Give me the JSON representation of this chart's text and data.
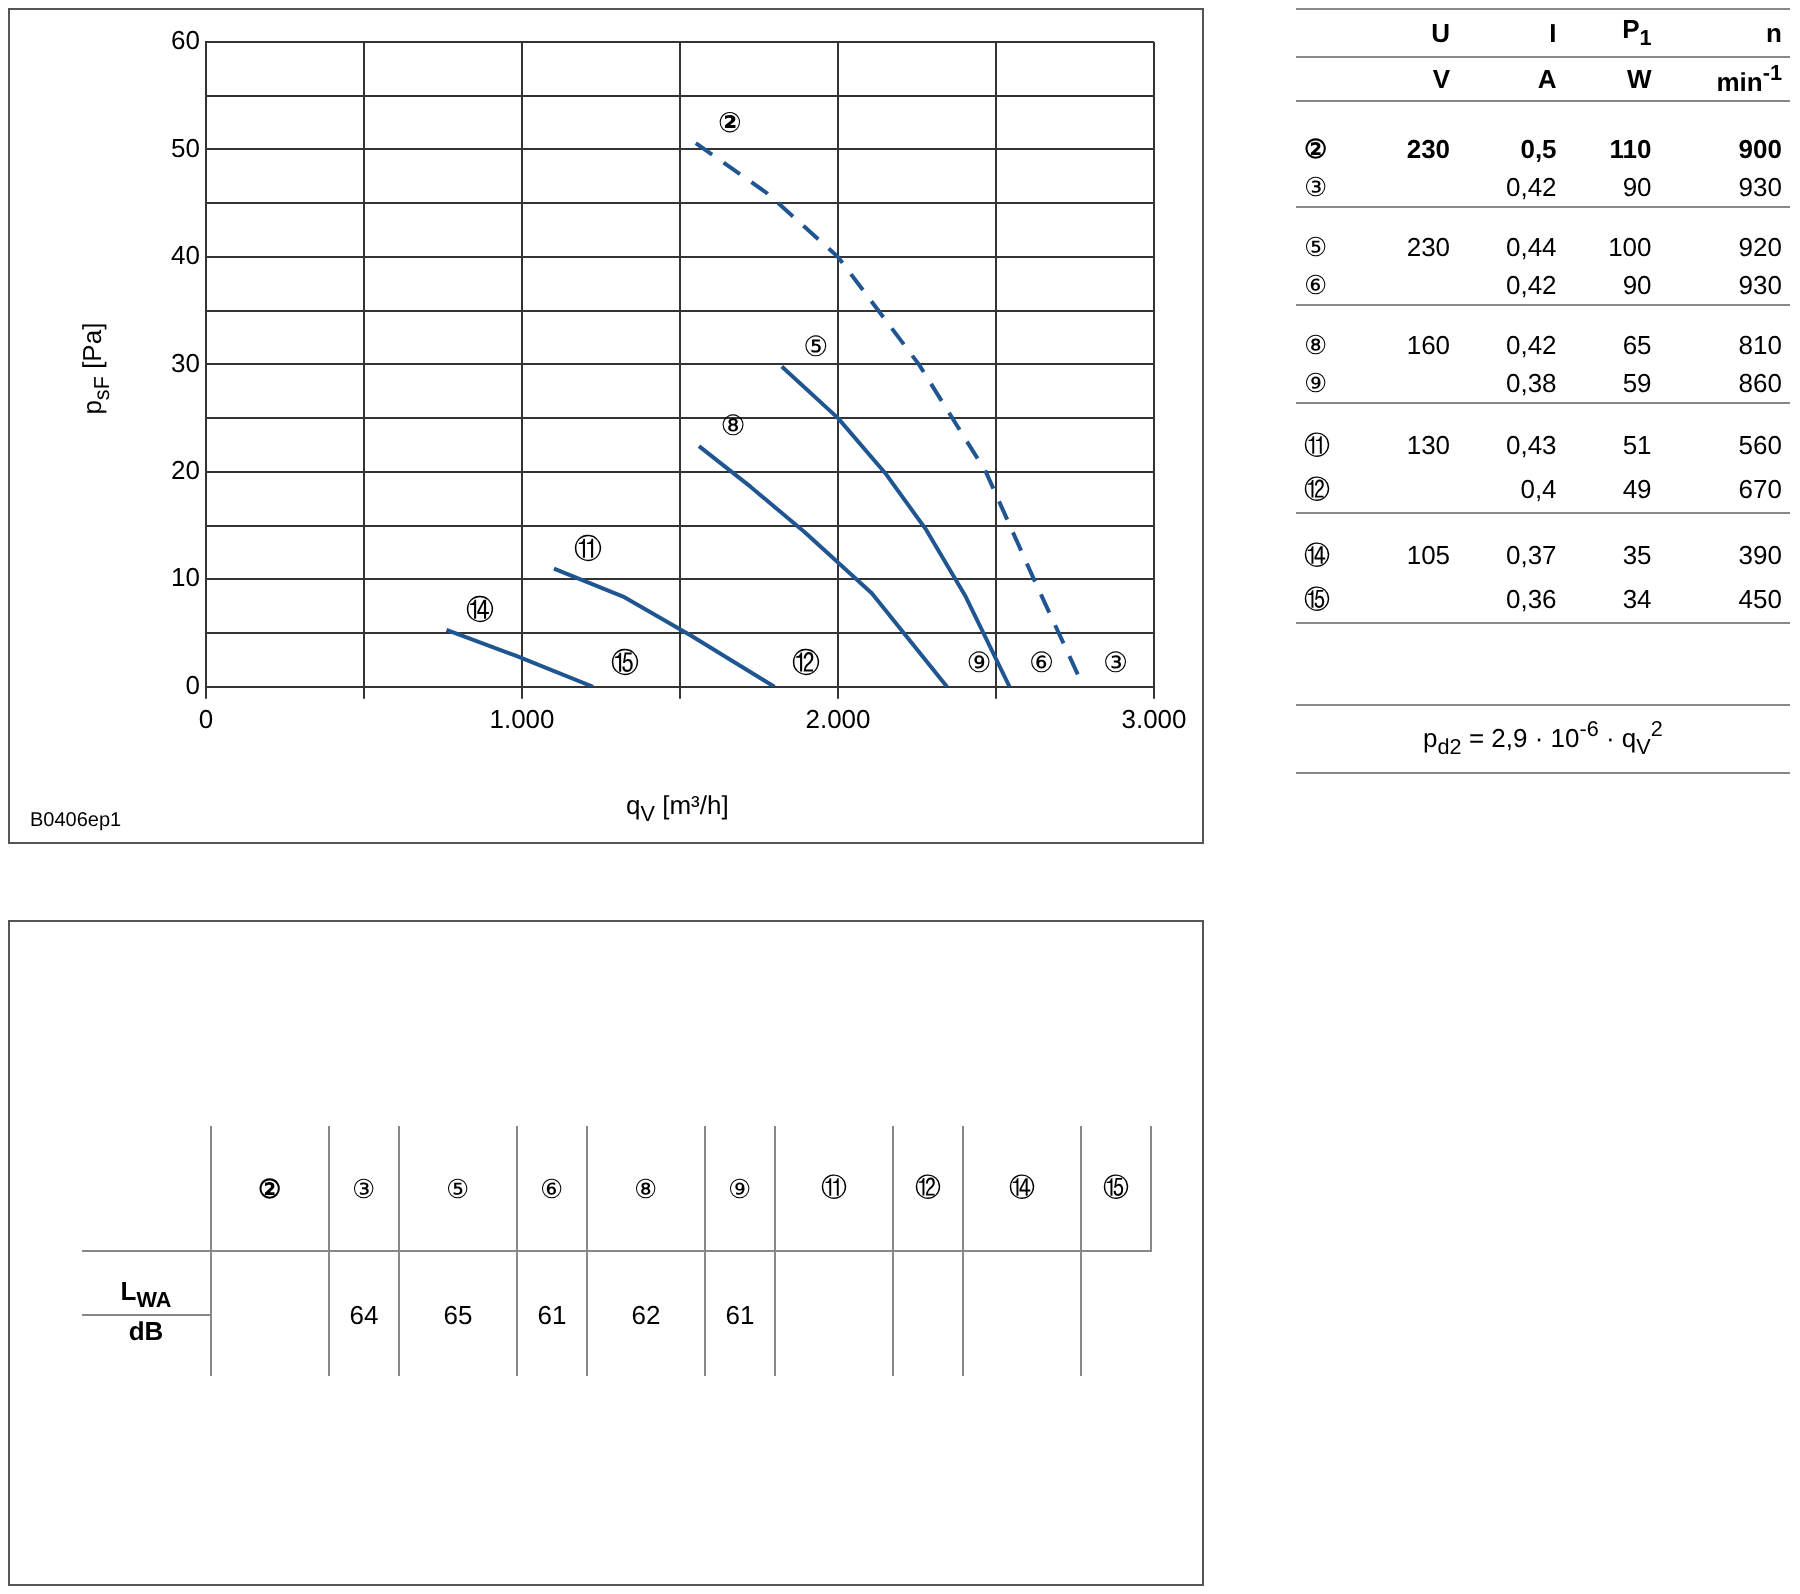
{
  "chart_data": [
    {
      "type": "line",
      "xlabel": "q$_{V}$ [m³/h]",
      "ylabel": "p$_{sF}$ [Pa]",
      "xlim": [
        0,
        3000
      ],
      "ylim": [
        0,
        60
      ],
      "grid": true,
      "xticks": [
        0,
        {
          "value": 500,
          "label": null
        },
        {
          "value": 1000,
          "label": "1.000"
        },
        {
          "value": 1500,
          "label": null
        },
        {
          "value": 2000,
          "label": "2.000"
        },
        {
          "value": 2500,
          "label": null
        },
        {
          "value": 3000,
          "label": "3.000"
        }
      ],
      "yticks": [
        0,
        {
          "value": 5,
          "label": null
        },
        10,
        {
          "value": 15,
          "label": null
        },
        20,
        {
          "value": 25,
          "label": null
        },
        30,
        {
          "value": 35,
          "label": null
        },
        40,
        {
          "value": 45,
          "label": null
        },
        50,
        {
          "value": 55,
          "label": null
        },
        60
      ],
      "series": [
        {
          "name": "②",
          "color": "#1f5590",
          "line_style": "dashed",
          "x": [
            1550,
            1777,
            2000,
            2256,
            2468,
            2617,
            2777
          ],
          "values": [
            50.6,
            45.9,
            40,
            30,
            20,
            10.2,
            0
          ]
        },
        {
          "name": "⑤",
          "color": "#1f5590",
          "x": [
            1822,
            2000,
            2149,
            2277,
            2404,
            2543
          ],
          "values": [
            29.8,
            25,
            19.9,
            14.7,
            8.4,
            0
          ]
        },
        {
          "name": "⑧",
          "color": "#1f5590",
          "x": [
            1560,
            1724,
            1894,
            2107,
            2345
          ],
          "values": [
            22.4,
            18.6,
            14.4,
            8.7,
            0
          ]
        },
        {
          "name": "⑪",
          "color": "#1f5590",
          "x": [
            1101,
            1320,
            1533,
            1799
          ],
          "values": [
            11,
            8.4,
            4.8,
            0
          ]
        },
        {
          "name": "⑭",
          "color": "#1f5590",
          "x": [
            761,
            980,
            1225
          ],
          "values": [
            5.3,
            2.9,
            0
          ]
        }
      ],
      "annotations": [
        {
          "text": "③",
          "x": 2777,
          "y": 0
        },
        {
          "text": "⑥",
          "x": 2543,
          "y": 0
        },
        {
          "text": "⑨",
          "x": 2345,
          "y": 0
        },
        {
          "text": "⑫",
          "x": 1799,
          "y": 0
        },
        {
          "text": "⑮",
          "x": 1225,
          "y": 0
        },
        "B0406ep1"
      ]
    },
    {
      "type": "other",
      "annotations": [
        "\tU\tI\tP$_{1}$\tn",
        "\tV\tA\tW\tmin$^{-1}$",
        "②\t230\t0,5\t110\t900",
        "③\t\t0,42\t90\t930",
        "⑤\t230\t0,44\t100\t920",
        "⑥\t\t0,42\t90\t930",
        "⑧\t160\t0,42\t65\t810",
        "⑨\t\t0,38\t59\t860",
        "⑪\t130\t0,43\t51\t560",
        "⑫\t\t0,4\t49\t670",
        "⑭\t105\t0,37\t35\t390",
        "⑮\t\t0,36\t34\t450",
        "p$_{d2}$ = 2,9 · 10$^{-6}$ · q$_{V}$$^{2}$"
      ]
    },
    {
      "type": "other",
      "annotations": [
        "\t②\t③\t⑤\t⑥\t⑧\t⑨\t⑪\t⑫\t⑭\t⑮",
        "L$_{WA}$\t\t64\t65\t61\t62\t61\t\t\t\t",
        "dB"
      ]
    }
  ]
}
